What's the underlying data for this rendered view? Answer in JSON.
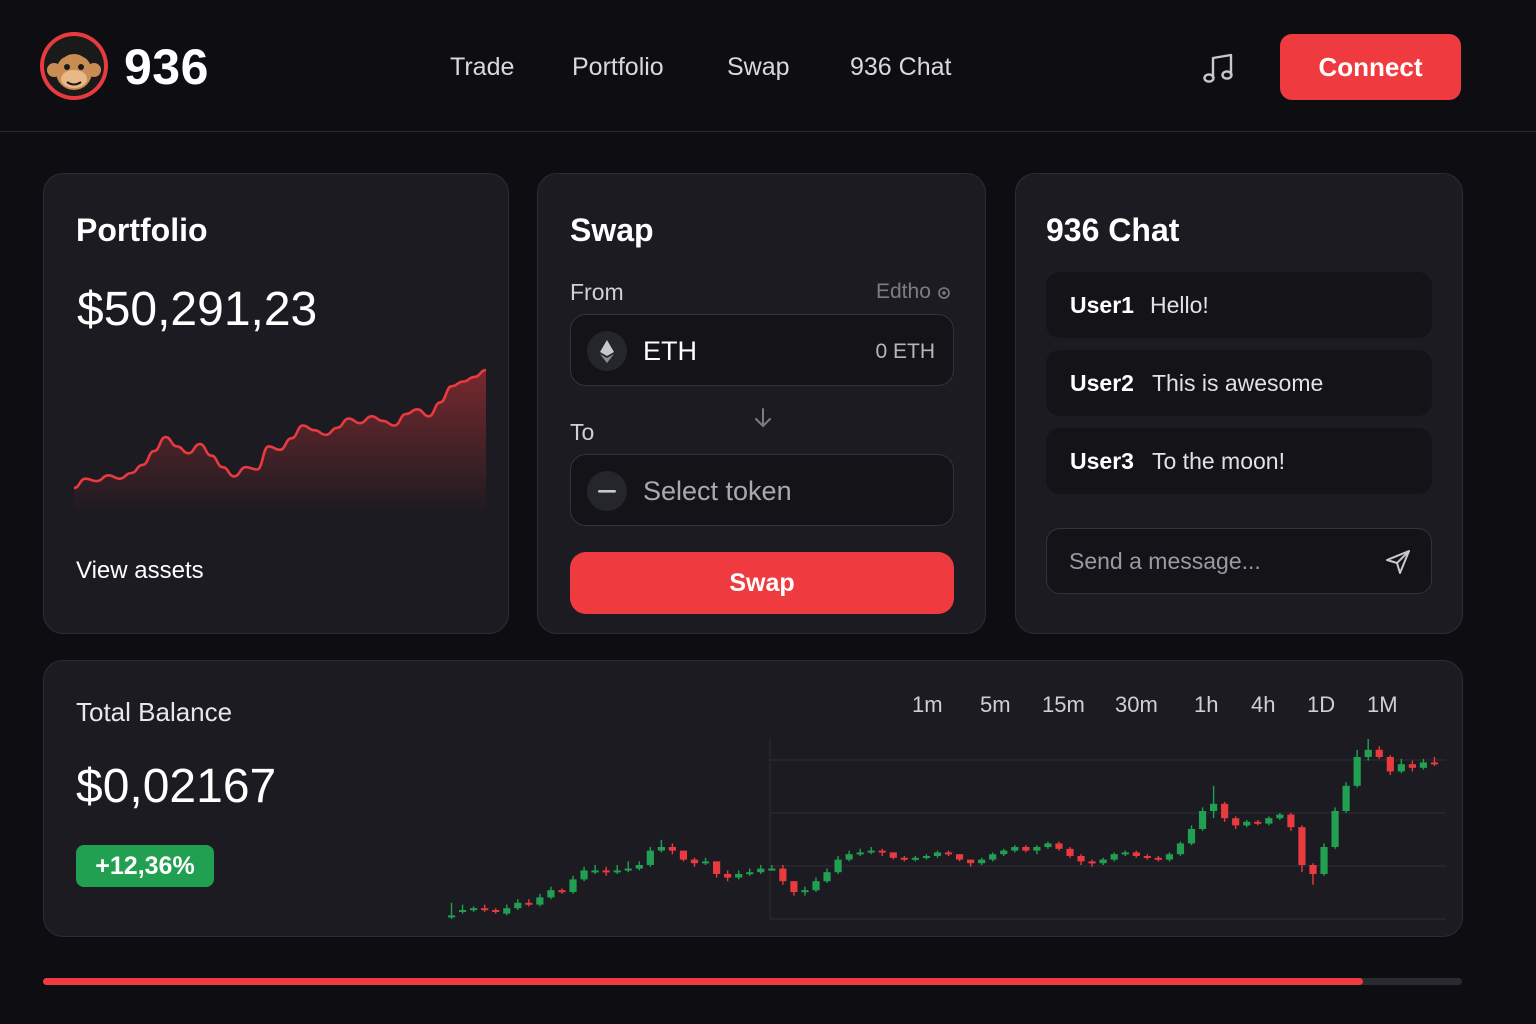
{
  "header": {
    "brand": "936",
    "nav": [
      {
        "label": "Trade"
      },
      {
        "label": "Portfolio"
      },
      {
        "label": "Swap"
      },
      {
        "label": "936 Chat"
      }
    ],
    "music_icon": "music-note-icon",
    "connect_label": "Connect"
  },
  "portfolio": {
    "title": "Portfolio",
    "value": "$50,291,23",
    "link": "View assets",
    "sparkline": [
      12,
      20,
      18,
      23,
      20,
      25,
      32,
      44,
      56,
      48,
      42,
      50,
      40,
      30,
      22,
      30,
      28,
      48,
      45,
      55,
      66,
      62,
      58,
      64,
      72,
      68,
      74,
      70,
      66,
      76,
      80,
      74,
      86,
      100,
      104,
      108,
      114
    ],
    "accent": "#e83a3f"
  },
  "swap": {
    "title": "Swap",
    "from_label": "From",
    "from_right_label": "Edtho",
    "from_token": "ETH",
    "from_amount": "0 ETH",
    "to_label": "To",
    "to_placeholder": "Select token",
    "button_label": "Swap",
    "arrow_icon": "arrow-down-icon"
  },
  "chat": {
    "title": "936 Chat",
    "messages": [
      {
        "user": "User1",
        "text": "Hello!"
      },
      {
        "user": "User2",
        "text": "This is awesome"
      },
      {
        "user": "User3",
        "text": "To the moon!"
      }
    ],
    "input_placeholder": "Send a message...",
    "send_icon": "send-icon"
  },
  "balance": {
    "title": "Total Balance",
    "value": "$0,02167",
    "change": "+12,36%",
    "timeframes": [
      "1m",
      "5m",
      "15m",
      "30m",
      "1h",
      "4h",
      "1D",
      "1M"
    ],
    "candles": [
      [
        8,
        8,
        15,
        6
      ],
      [
        10,
        11,
        14,
        9
      ],
      [
        11,
        12,
        13,
        10
      ],
      [
        12,
        11,
        14,
        10
      ],
      [
        11,
        10,
        12,
        9
      ],
      [
        9,
        12,
        14,
        8
      ],
      [
        12,
        15,
        17,
        11
      ],
      [
        15,
        14,
        17,
        13
      ],
      [
        14,
        18,
        20,
        13
      ],
      [
        18,
        22,
        24,
        17
      ],
      [
        22,
        21,
        23,
        20
      ],
      [
        21,
        28,
        30,
        20
      ],
      [
        28,
        33,
        35,
        27
      ],
      [
        33,
        33,
        36,
        31
      ],
      [
        33,
        32,
        35,
        30
      ],
      [
        32,
        33,
        36,
        31
      ],
      [
        33,
        34,
        38,
        32
      ],
      [
        34,
        36,
        38,
        33
      ],
      [
        36,
        44,
        46,
        35
      ],
      [
        44,
        46,
        50,
        43
      ],
      [
        46,
        44,
        48,
        42
      ],
      [
        44,
        39,
        44,
        38
      ],
      [
        39,
        37,
        40,
        35
      ],
      [
        37,
        38,
        40,
        36
      ],
      [
        38,
        31,
        38,
        29
      ],
      [
        31,
        29,
        33,
        27
      ],
      [
        29,
        31,
        33,
        28
      ],
      [
        31,
        32,
        34,
        30
      ],
      [
        32,
        34,
        36,
        31
      ],
      [
        34,
        34,
        36,
        33
      ],
      [
        34,
        27,
        36,
        25
      ],
      [
        27,
        21,
        27,
        19
      ],
      [
        21,
        22,
        24,
        19
      ],
      [
        22,
        27,
        29,
        21
      ],
      [
        27,
        32,
        34,
        26
      ],
      [
        32,
        39,
        41,
        31
      ],
      [
        39,
        42,
        44,
        38
      ],
      [
        42,
        43,
        45,
        41
      ],
      [
        43,
        44,
        46,
        42
      ],
      [
        44,
        43,
        45,
        41
      ],
      [
        43,
        40,
        43,
        39
      ],
      [
        40,
        39,
        41,
        38
      ],
      [
        39,
        40,
        41,
        38
      ],
      [
        40,
        41,
        42,
        39
      ],
      [
        41,
        43,
        44,
        40
      ],
      [
        43,
        42,
        44,
        41
      ],
      [
        42,
        39,
        42,
        38
      ],
      [
        39,
        37,
        39,
        35
      ],
      [
        37,
        39,
        40,
        36
      ],
      [
        39,
        42,
        43,
        38
      ],
      [
        42,
        44,
        45,
        41
      ],
      [
        44,
        46,
        47,
        43
      ],
      [
        46,
        44,
        47,
        43
      ],
      [
        44,
        46,
        47,
        42
      ],
      [
        46,
        48,
        49,
        45
      ],
      [
        48,
        45,
        49,
        44
      ],
      [
        45,
        41,
        46,
        40
      ],
      [
        41,
        38,
        42,
        36
      ],
      [
        38,
        37,
        39,
        35
      ],
      [
        37,
        39,
        40,
        36
      ],
      [
        39,
        42,
        43,
        38
      ],
      [
        42,
        43,
        44,
        41
      ],
      [
        43,
        41,
        44,
        40
      ],
      [
        41,
        40,
        42,
        39
      ],
      [
        40,
        39,
        41,
        38
      ],
      [
        39,
        42,
        43,
        38
      ],
      [
        42,
        48,
        49,
        41
      ],
      [
        48,
        56,
        58,
        47
      ],
      [
        56,
        66,
        68,
        55
      ],
      [
        66,
        70,
        80,
        62
      ],
      [
        70,
        62,
        71,
        60
      ],
      [
        62,
        58,
        63,
        56
      ],
      [
        58,
        60,
        61,
        57
      ],
      [
        60,
        59,
        61,
        58
      ],
      [
        59,
        62,
        63,
        58
      ],
      [
        62,
        64,
        65,
        61
      ],
      [
        64,
        57,
        65,
        55
      ],
      [
        57,
        36,
        58,
        32
      ],
      [
        36,
        31,
        37,
        25
      ],
      [
        31,
        46,
        48,
        30
      ],
      [
        46,
        66,
        68,
        45
      ],
      [
        66,
        80,
        82,
        65
      ],
      [
        80,
        96,
        100,
        79
      ],
      [
        96,
        100,
        106,
        94
      ],
      [
        100,
        96,
        102,
        95
      ],
      [
        96,
        88,
        97,
        86
      ],
      [
        88,
        92,
        95,
        87
      ],
      [
        92,
        90,
        94,
        88
      ],
      [
        90,
        93,
        95,
        89
      ],
      [
        93,
        92,
        96,
        91
      ]
    ],
    "up_color": "#22a052",
    "down_color": "#e83a3f"
  },
  "progress": {
    "value": 0.93
  }
}
